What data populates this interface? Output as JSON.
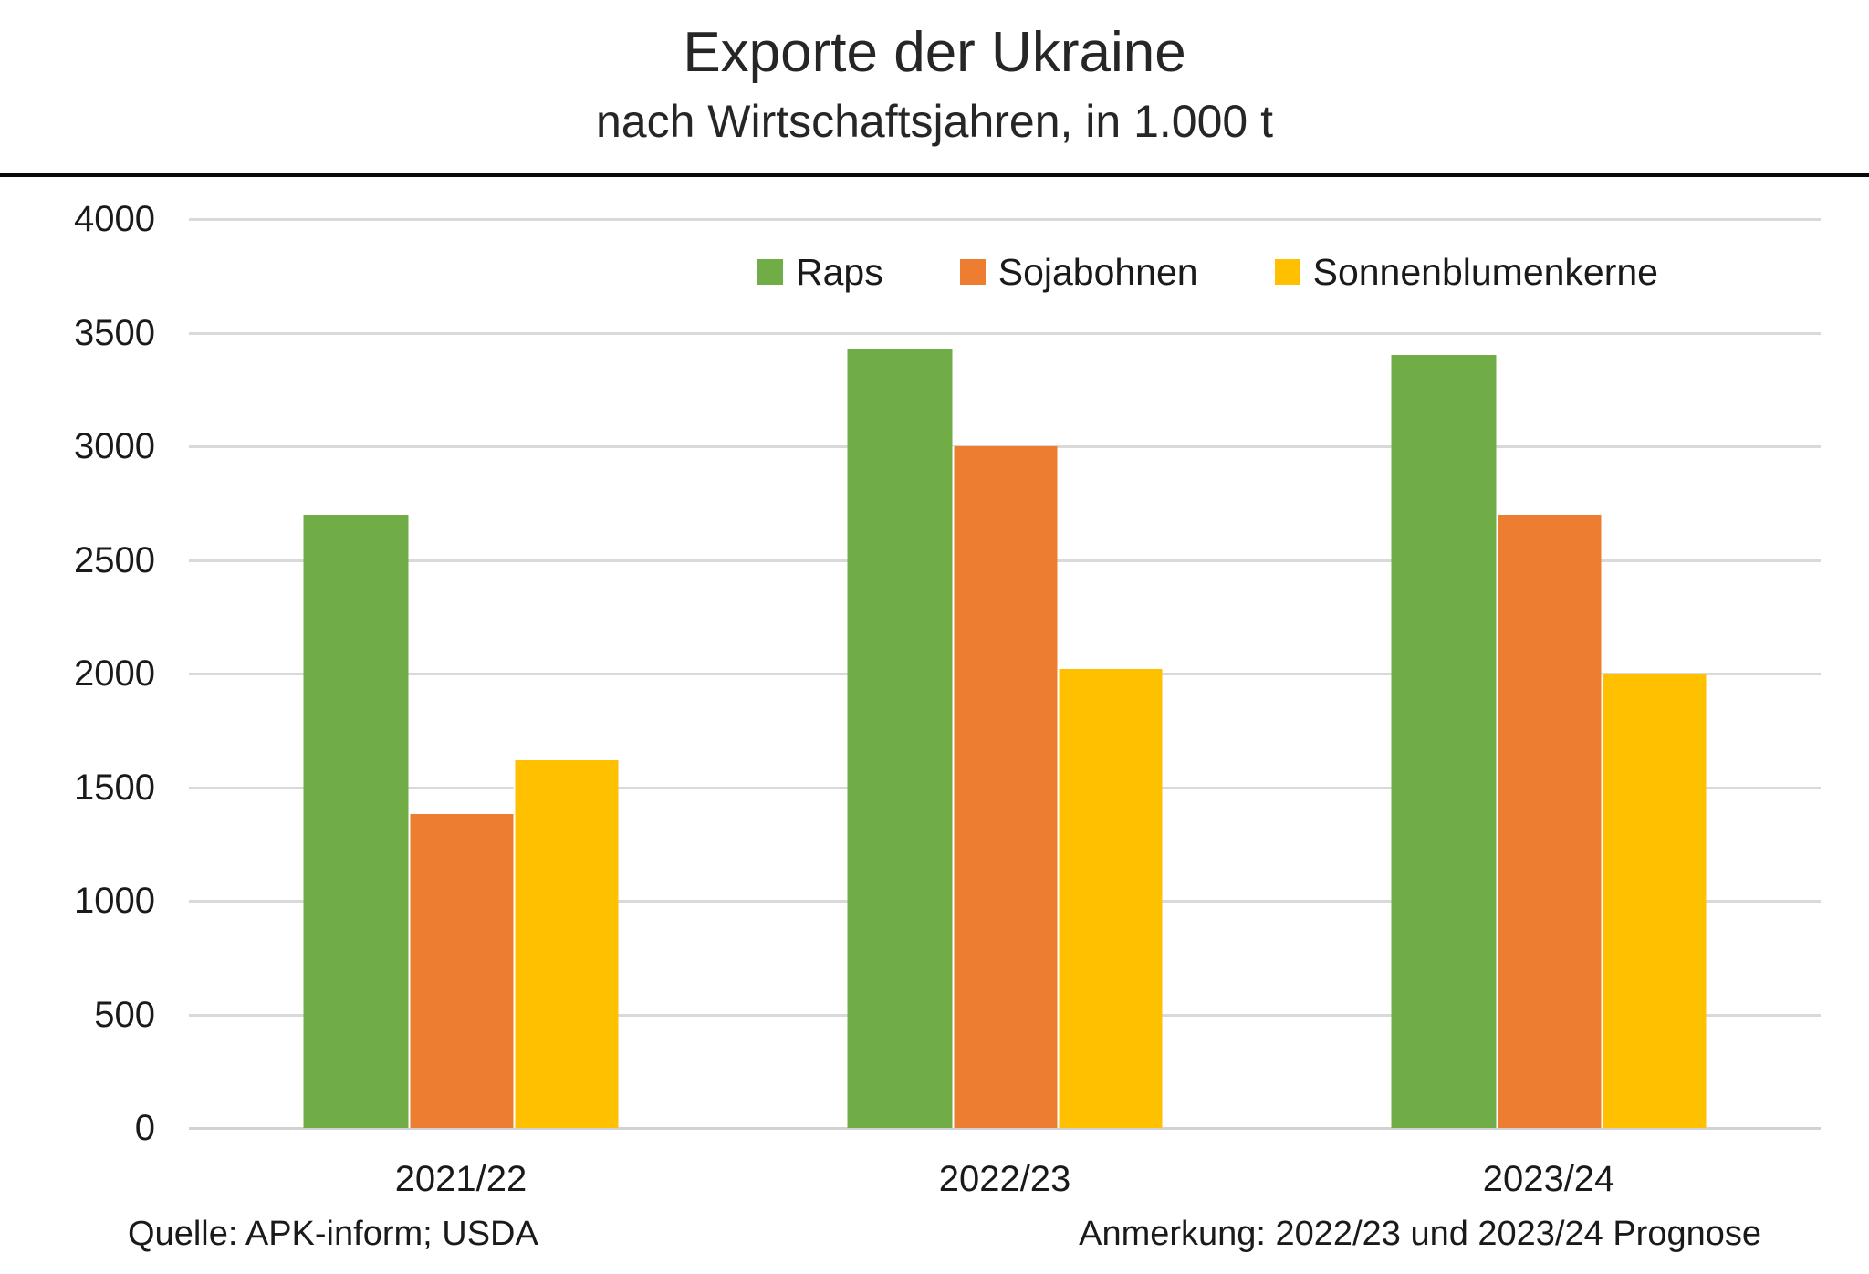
{
  "header": {
    "title": "Exporte der Ukraine",
    "subtitle": "nach Wirtschaftsjahren, in 1.000 t"
  },
  "footer": {
    "source": "Quelle: APK-inform; USDA",
    "note": "Anmerkung: 2022/23 und 2023/24 Prognose"
  },
  "chart_data": {
    "type": "bar",
    "title": "Exporte der Ukraine",
    "subtitle": "nach Wirtschaftsjahren, in 1.000 t",
    "categories": [
      "2021/22",
      "2022/23",
      "2023/24"
    ],
    "series": [
      {
        "name": "Raps",
        "color": "#70AD47",
        "values": [
          2700,
          3430,
          3400
        ]
      },
      {
        "name": "Sojabohnen",
        "color": "#ED7D31",
        "values": [
          1380,
          3000,
          2700
        ]
      },
      {
        "name": "Sonnenblumenkerne",
        "color": "#FFC000",
        "values": [
          1620,
          2020,
          2000
        ]
      }
    ],
    "xlabel": "",
    "ylabel": "",
    "ylim": [
      0,
      4000
    ],
    "yticks": [
      0,
      500,
      1000,
      1500,
      2000,
      2500,
      3000,
      3500,
      4000
    ],
    "grid": true,
    "legend_position": "top-inside-right",
    "gridline_color": "#D9D9D9",
    "baseline_color": "#D2D2D2",
    "divider_color": "#0a0a0a"
  }
}
